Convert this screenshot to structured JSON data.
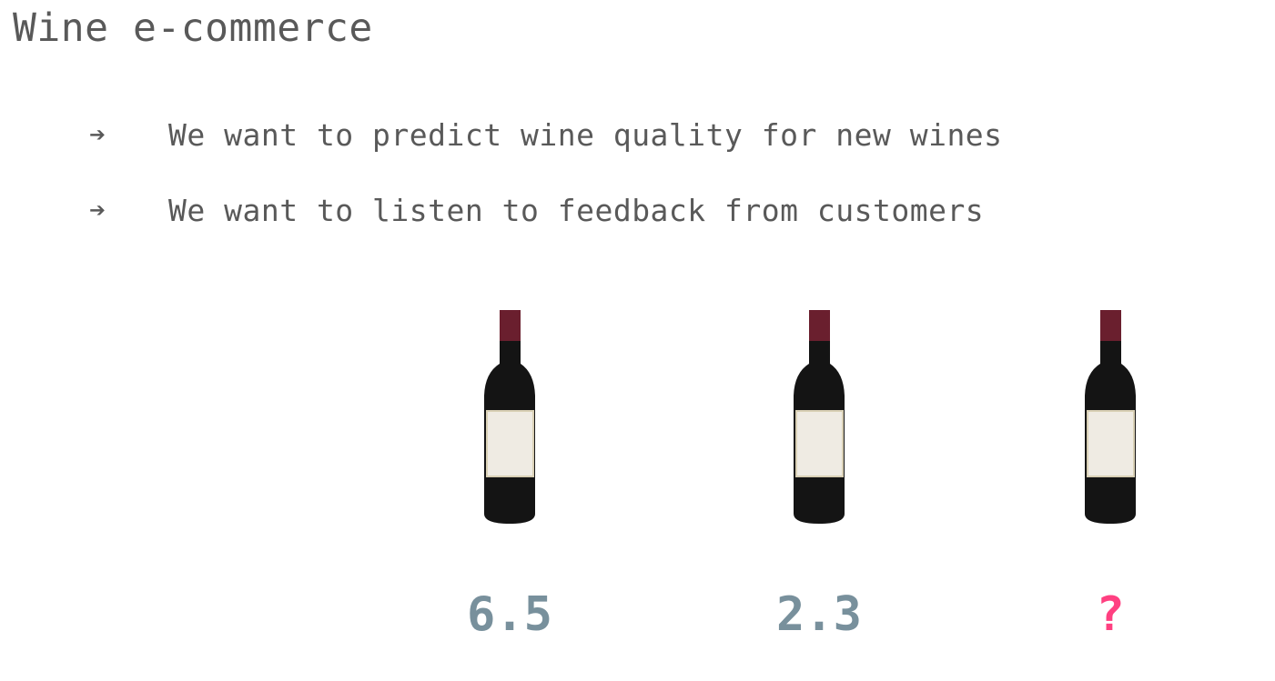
{
  "title": "Wine e-commerce",
  "bullets": [
    {
      "icon": "arrow-right-icon",
      "glyph": "➔",
      "text": "We want to predict wine quality for new wines"
    },
    {
      "icon": "arrow-right-icon",
      "glyph": "➔",
      "text": "We want to listen to feedback from customers"
    }
  ],
  "wines": [
    {
      "icon": "wine-bottle-icon",
      "score": "6.5"
    },
    {
      "icon": "wine-bottle-icon",
      "score": "2.3"
    },
    {
      "icon": "wine-bottle-icon",
      "score": "?"
    }
  ],
  "colors": {
    "text": "#595959",
    "score": "#78909c",
    "unknown_score": "#ff4081",
    "bottle_body": "#141414",
    "bottle_cap": "#6a1f2e",
    "bottle_label": "#efebe3"
  }
}
